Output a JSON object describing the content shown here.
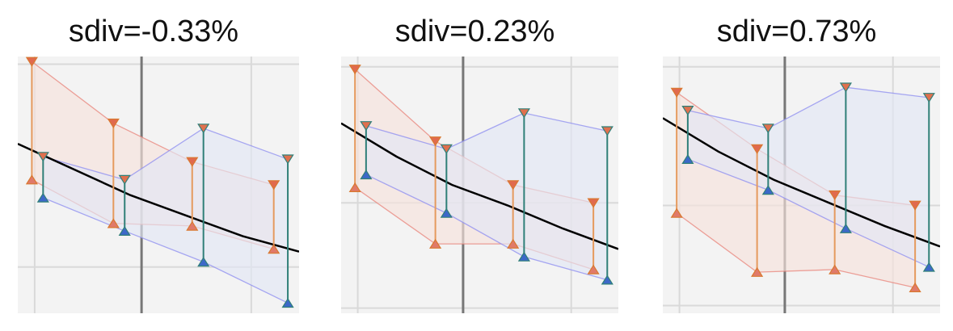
{
  "chart_data": [
    {
      "type": "line",
      "title": "sdiv=-0.33%",
      "xlim": [
        0,
        10
      ],
      "ylim": [
        0,
        10
      ],
      "x_gridlines": [
        0.6,
        8.3
      ],
      "y_gridlines": [
        9.7,
        1.8
      ],
      "center_line_x": 4.4,
      "trend_line": {
        "x": [
          0,
          2,
          4,
          6,
          8,
          10
        ],
        "y": [
          6.6,
          5.6,
          4.6,
          3.8,
          3.0,
          2.4
        ]
      },
      "band_a": {
        "color": "#e8837a",
        "fill": "#f6e2dc",
        "upper": {
          "x": [
            0.5,
            3.4,
            6.2,
            9.1
          ],
          "y": [
            9.8,
            7.4,
            5.9,
            5.0
          ]
        },
        "lower": {
          "x": [
            0.5,
            3.4,
            6.2,
            9.1
          ],
          "y": [
            5.2,
            3.5,
            3.4,
            2.5
          ]
        }
      },
      "band_b": {
        "color": "#8c8cf0",
        "fill": "#e2e6f4",
        "upper": {
          "x": [
            0.9,
            3.8,
            6.6,
            9.6
          ],
          "y": [
            6.1,
            5.2,
            7.2,
            6.0
          ]
        },
        "lower": {
          "x": [
            0.9,
            3.8,
            6.6,
            9.6
          ],
          "y": [
            4.5,
            3.2,
            2.0,
            0.4
          ]
        }
      }
    },
    {
      "type": "line",
      "title": "sdiv=0.23%",
      "xlim": [
        0,
        10
      ],
      "ylim": [
        0,
        10
      ],
      "x_gridlines": [
        0.6,
        8.3
      ],
      "y_gridlines": [
        9.6,
        4.3,
        0.2
      ],
      "center_line_x": 4.4,
      "trend_line": {
        "x": [
          0,
          2,
          4,
          6,
          8,
          10
        ],
        "y": [
          7.4,
          6.1,
          5.0,
          4.2,
          3.3,
          2.5
        ]
      },
      "band_a": {
        "color": "#e8837a",
        "fill": "#f6e2dc",
        "upper": {
          "x": [
            0.5,
            3.4,
            6.2,
            9.1
          ],
          "y": [
            9.5,
            6.7,
            5.0,
            4.3
          ]
        },
        "lower": {
          "x": [
            0.5,
            3.4,
            6.2,
            9.1
          ],
          "y": [
            4.9,
            2.7,
            2.7,
            1.7
          ]
        }
      },
      "band_b": {
        "color": "#8c8cf0",
        "fill": "#e2e6f4",
        "upper": {
          "x": [
            0.9,
            3.8,
            6.6,
            9.6
          ],
          "y": [
            7.3,
            6.4,
            7.8,
            7.1
          ]
        },
        "lower": {
          "x": [
            0.9,
            3.8,
            6.6,
            9.6
          ],
          "y": [
            5.4,
            3.9,
            2.2,
            1.3
          ]
        }
      }
    },
    {
      "type": "line",
      "title": "sdiv=0.73%",
      "xlim": [
        0,
        10
      ],
      "ylim": [
        0,
        10
      ],
      "x_gridlines": [
        0.6,
        8.3
      ],
      "y_gridlines": [
        9.6,
        4.2,
        0.3
      ],
      "center_line_x": 4.4,
      "trend_line": {
        "x": [
          0,
          2,
          4,
          6,
          8,
          10
        ],
        "y": [
          7.6,
          6.3,
          5.2,
          4.3,
          3.4,
          2.6
        ]
      },
      "band_a": {
        "color": "#e8837a",
        "fill": "#f6e2dc",
        "upper": {
          "x": [
            0.5,
            3.4,
            6.2,
            9.1
          ],
          "y": [
            8.6,
            6.4,
            4.6,
            4.2
          ]
        },
        "lower": {
          "x": [
            0.5,
            3.4,
            6.2,
            9.1
          ],
          "y": [
            3.9,
            1.6,
            1.7,
            1.0
          ]
        }
      },
      "band_b": {
        "color": "#8c8cf0",
        "fill": "#e2e6f4",
        "upper": {
          "x": [
            0.9,
            3.8,
            6.6,
            9.6
          ],
          "y": [
            7.9,
            7.2,
            8.8,
            8.4
          ]
        },
        "lower": {
          "x": [
            0.9,
            3.8,
            6.6,
            9.6
          ],
          "y": [
            6.0,
            4.8,
            3.3,
            1.8
          ]
        }
      }
    }
  ]
}
